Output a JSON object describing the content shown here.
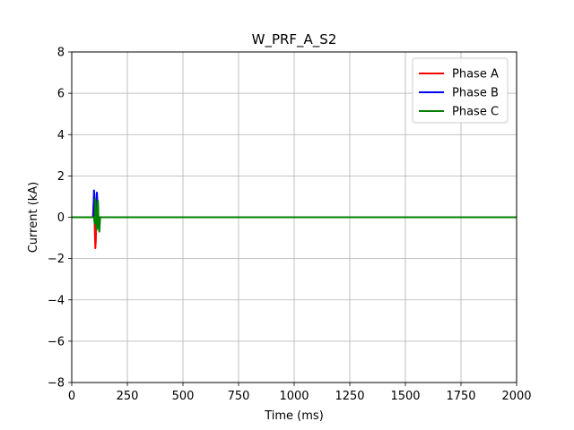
{
  "chart_data": {
    "type": "line",
    "title": "W_PRF_A_S2",
    "xlabel": "Time (ms)",
    "ylabel": "Current (kA)",
    "xlim": [
      0,
      2000
    ],
    "ylim": [
      -8,
      8
    ],
    "xticks": [
      0,
      250,
      500,
      750,
      1000,
      1250,
      1500,
      1750,
      2000
    ],
    "yticks": [
      -8,
      -6,
      -4,
      -2,
      0,
      2,
      4,
      6,
      8
    ],
    "grid": true,
    "legend_position": "top-right",
    "series": [
      {
        "name": "Phase A",
        "color": "#ff0000",
        "x": [
          0,
          95,
          98,
          100,
          102,
          104,
          106,
          108,
          110,
          112,
          115,
          120,
          2000
        ],
        "y": [
          0,
          0,
          0.6,
          1.0,
          0.3,
          -0.8,
          -1.5,
          -1.2,
          -0.4,
          0.2,
          0.1,
          0,
          0
        ]
      },
      {
        "name": "Phase B",
        "color": "#0000ff",
        "x": [
          0,
          97,
          100,
          102,
          104,
          107,
          110,
          113,
          116,
          118,
          120,
          125,
          2000
        ],
        "y": [
          0,
          0,
          1.3,
          1.1,
          0.4,
          -0.3,
          -0.1,
          1.2,
          0.6,
          -0.2,
          -0.5,
          0,
          0
        ]
      },
      {
        "name": "Phase C",
        "color": "#008000",
        "x": [
          0,
          100,
          103,
          106,
          109,
          112,
          115,
          118,
          121,
          124,
          128,
          2000
        ],
        "y": [
          0,
          0,
          -0.3,
          0.9,
          0.2,
          -0.6,
          0.1,
          0.8,
          -0.5,
          -0.7,
          0,
          0
        ]
      }
    ]
  }
}
